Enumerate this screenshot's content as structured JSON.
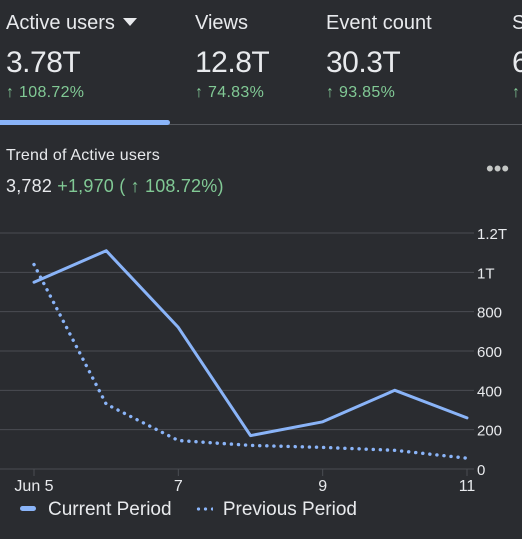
{
  "metrics": [
    {
      "label": "Active users",
      "value": "3.78T",
      "delta": "↑ 108.72%"
    },
    {
      "label": "Views",
      "value": "12.8T",
      "delta": "↑ 74.83%"
    },
    {
      "label": "Event count",
      "value": "30.3T",
      "delta": "↑ 93.85%"
    },
    {
      "label": "S",
      "value": "6",
      "delta": "↑"
    }
  ],
  "trend": {
    "title": "Trend of Active users",
    "value": "3,782",
    "change": "+1,970 ( ↑ 108.72%)",
    "more_label": "•••"
  },
  "chart_data": {
    "type": "line",
    "x": [
      "Jun 5",
      "Jun 6",
      "Jun 7",
      "Jun 8",
      "Jun 9",
      "Jun 10",
      "Jun 11"
    ],
    "x_tick_labels": [
      "Jun 5",
      "",
      "7",
      "",
      "9",
      "",
      "11"
    ],
    "y_tick_labels": [
      "0",
      "200",
      "400",
      "600",
      "800",
      "1T",
      "1.2T"
    ],
    "y_ticks": [
      0,
      200,
      400,
      600,
      800,
      1000,
      1200
    ],
    "ylim": [
      0,
      1200
    ],
    "grid": true,
    "legend_position": "bottom-left",
    "series": [
      {
        "name": "Current Period",
        "style": "solid",
        "values": [
          950,
          1110,
          720,
          170,
          240,
          400,
          260
        ]
      },
      {
        "name": "Previous Period",
        "style": "dotted",
        "values": [
          1040,
          330,
          145,
          120,
          110,
          95,
          55
        ]
      }
    ],
    "colors": {
      "series": "#8ab4f8",
      "grid": "#4a4d52",
      "axis_text": "#e8eaed"
    }
  },
  "legend": {
    "current": "Current Period",
    "previous": "Previous Period"
  }
}
